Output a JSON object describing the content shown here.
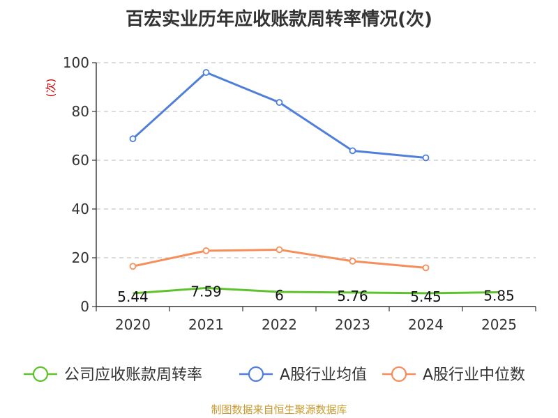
{
  "colors": {
    "company": "#5ec22c",
    "avg": "#4f7fd9",
    "median": "#f58e5a",
    "axis": "#333333",
    "grid": "#c8c8c8",
    "unit": "#cc0000",
    "source": "#c99a2e"
  },
  "chart_data": {
    "type": "line",
    "title": "百宏实业历年应收账款周转率情况(次)",
    "ylabel": "(次)",
    "ylim": [
      0,
      100
    ],
    "yticks": [
      0,
      20,
      40,
      60,
      80,
      100
    ],
    "grid": true,
    "legend_position": "bottom",
    "categories": [
      "2020",
      "2021",
      "2022",
      "2023",
      "2024",
      "2025"
    ],
    "series": [
      {
        "name": "公司应收账款周转率",
        "key": "company",
        "values": [
          5.44,
          7.59,
          6,
          5.76,
          5.45,
          5.85
        ],
        "labels": [
          "5.44",
          "7.59",
          "6",
          "5.76",
          "5.45",
          "5.85"
        ]
      },
      {
        "name": "A股行业均值",
        "key": "avg",
        "values": [
          68.8,
          96,
          83.7,
          63.9,
          61,
          null
        ]
      },
      {
        "name": "A股行业中位数",
        "key": "median",
        "values": [
          16.5,
          22.9,
          23.3,
          18.6,
          15.9,
          null
        ]
      }
    ],
    "source": "制图数据来自恒生聚源数据库"
  }
}
